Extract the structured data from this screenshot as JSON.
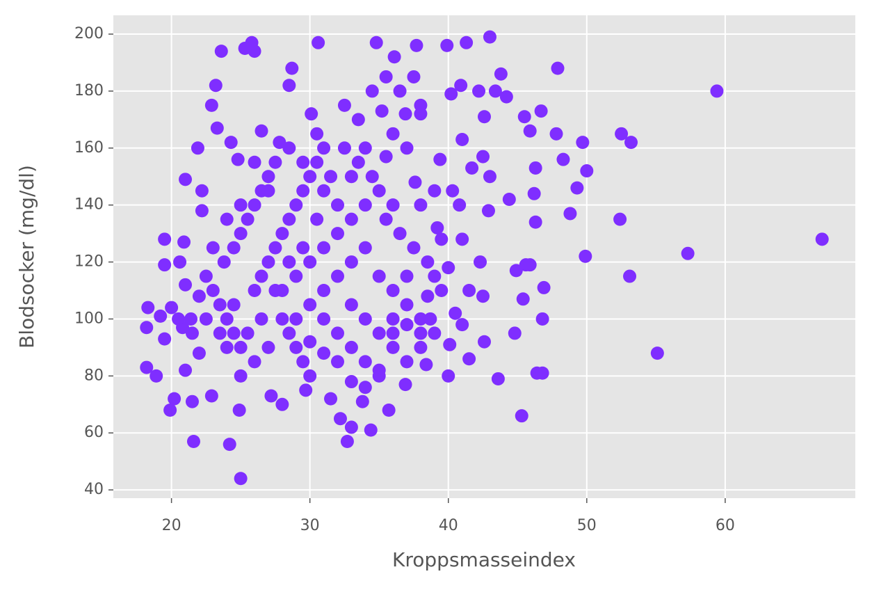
{
  "chart_data": {
    "type": "scatter",
    "x_label": "Kroppsmasseindex",
    "y_label": "Blodsocker (mg/dl)",
    "color": "#7f2eff",
    "grid": true,
    "xlim": [
      15.8,
      69.4
    ],
    "ylim": [
      37.1,
      206.6
    ],
    "xticks": [
      20,
      30,
      40,
      50,
      60
    ],
    "yticks": [
      40,
      60,
      80,
      100,
      120,
      140,
      160,
      180,
      200
    ],
    "x": [
      67.0,
      59.4,
      57.3,
      55.1,
      53.1,
      53.2,
      52.5,
      52.4,
      50.0,
      49.9,
      49.7,
      49.3,
      48.8,
      48.3,
      47.9,
      47.8,
      46.7,
      46.9,
      46.8,
      46.4,
      46.8,
      46.3,
      46.3,
      46.2,
      45.9,
      45.5,
      45.6,
      45.9,
      45.3,
      45.4,
      44.8,
      44.9,
      44.4,
      44.2,
      43.8,
      43.6,
      43.4,
      43.0,
      43.0,
      42.9,
      42.6,
      42.5,
      42.3,
      42.5,
      42.6,
      42.2,
      41.7,
      41.5,
      41.3,
      41.0,
      41.0,
      40.9,
      40.8,
      40.2,
      40.3,
      40.0,
      40.1,
      39.9,
      39.4,
      39.2,
      39.0,
      38.7,
      38.4,
      38.0,
      37.7,
      37.6,
      36.9,
      36.9,
      36.1,
      35.7,
      35.5,
      35.2,
      34.8,
      34.4,
      33.8,
      33.0,
      32.7,
      32.2,
      31.5,
      30.6,
      30.1,
      29.7,
      28.7,
      28.5,
      28.0,
      27.8,
      27.2,
      26.5,
      26.0,
      25.8,
      25.3,
      25.0,
      24.9,
      24.8,
      24.3,
      24.2,
      23.6,
      23.3,
      23.2,
      22.9,
      22.9,
      22.2,
      22.2,
      21.9,
      21.6,
      21.5,
      21.0,
      21.0,
      20.9,
      20.6,
      20.2,
      19.9,
      19.5,
      19.5,
      19.5,
      18.9,
      18.3,
      18.2,
      18.2,
      19.2,
      20.0,
      20.8,
      21.4,
      22.0,
      22.5,
      23,
      23.5,
      24,
      24.5,
      25,
      23.8,
      24.5,
      25,
      25.5,
      26,
      26.5,
      27,
      27.5,
      26,
      26.5,
      27,
      27.5,
      28,
      28.5,
      29,
      29.5,
      30,
      30.5,
      31,
      28,
      28.5,
      29,
      29.5,
      30,
      28,
      29,
      30,
      31,
      32,
      33,
      34,
      35,
      36,
      30,
      31,
      32,
      33,
      34,
      35,
      31,
      32,
      33,
      34,
      35,
      36,
      37,
      38,
      39,
      33,
      34,
      35,
      36,
      37,
      38,
      32,
      33,
      34,
      33.5,
      32.5,
      34.5,
      35.5,
      36.5,
      37.5,
      31,
      30.5,
      29.5,
      28.5,
      27.5,
      26.5,
      25.5,
      24.5,
      23.5,
      22.5,
      23,
      24,
      25,
      26,
      27,
      28.5,
      29.5,
      30.5,
      31.5,
      32.5,
      33.5,
      34.5,
      35.5,
      36.5,
      37.5,
      38.5,
      39.5,
      38,
      39,
      37,
      36,
      38,
      36,
      37,
      38.5,
      39.5,
      31,
      32,
      30,
      29,
      27,
      26,
      25,
      33,
      34,
      35,
      36,
      37,
      38,
      40,
      40.5,
      41,
      41.5,
      24,
      22,
      21.5,
      20.5,
      21
    ],
    "values": [
      128,
      180,
      123,
      88,
      115,
      162,
      165,
      135,
      152,
      122,
      162,
      146,
      137,
      156,
      188,
      165,
      173,
      111,
      100,
      81,
      81,
      153,
      134,
      144,
      166,
      171,
      119,
      119,
      66,
      107,
      95,
      117,
      142,
      178,
      186,
      79,
      180,
      199,
      150,
      138,
      92,
      108,
      120,
      157,
      171,
      180,
      153,
      86,
      197,
      128,
      163,
      182,
      140,
      179,
      145,
      80,
      91,
      196,
      156,
      132,
      115,
      100,
      84,
      172,
      196,
      148,
      77,
      172,
      192,
      68,
      157,
      173,
      197,
      61,
      71,
      62,
      57,
      65,
      72,
      197,
      172,
      75,
      188,
      182,
      70,
      162,
      73,
      166,
      194,
      197,
      195,
      44,
      68,
      156,
      162,
      56,
      194,
      167,
      182,
      175,
      73,
      145,
      138,
      160,
      57,
      71,
      149,
      82,
      127,
      120,
      72,
      68,
      128,
      119,
      93,
      80,
      104,
      83,
      97,
      101,
      104,
      97,
      100,
      88,
      115,
      110,
      105,
      100,
      95,
      90,
      120,
      125,
      130,
      135,
      140,
      145,
      150,
      155,
      110,
      115,
      120,
      125,
      130,
      135,
      140,
      145,
      150,
      155,
      160,
      100,
      95,
      90,
      85,
      80,
      110,
      115,
      120,
      125,
      130,
      135,
      140,
      145,
      140,
      105,
      100,
      95,
      90,
      85,
      82,
      110,
      115,
      120,
      125,
      115,
      110,
      105,
      100,
      95,
      105,
      100,
      95,
      90,
      85,
      90,
      140,
      150,
      160,
      170,
      175,
      180,
      185,
      180,
      185,
      145,
      135,
      125,
      120,
      110,
      100,
      95,
      105,
      95,
      100,
      125,
      135,
      140,
      155,
      145,
      160,
      155,
      165,
      150,
      160,
      155,
      150,
      135,
      130,
      125,
      120,
      110,
      140,
      145,
      160,
      165,
      175,
      100,
      115,
      108,
      128,
      88,
      85,
      92,
      100,
      90,
      85,
      80,
      78,
      76,
      80,
      95,
      98,
      95,
      118,
      102,
      98,
      110,
      90,
      108,
      95,
      100,
      112
    ]
  }
}
